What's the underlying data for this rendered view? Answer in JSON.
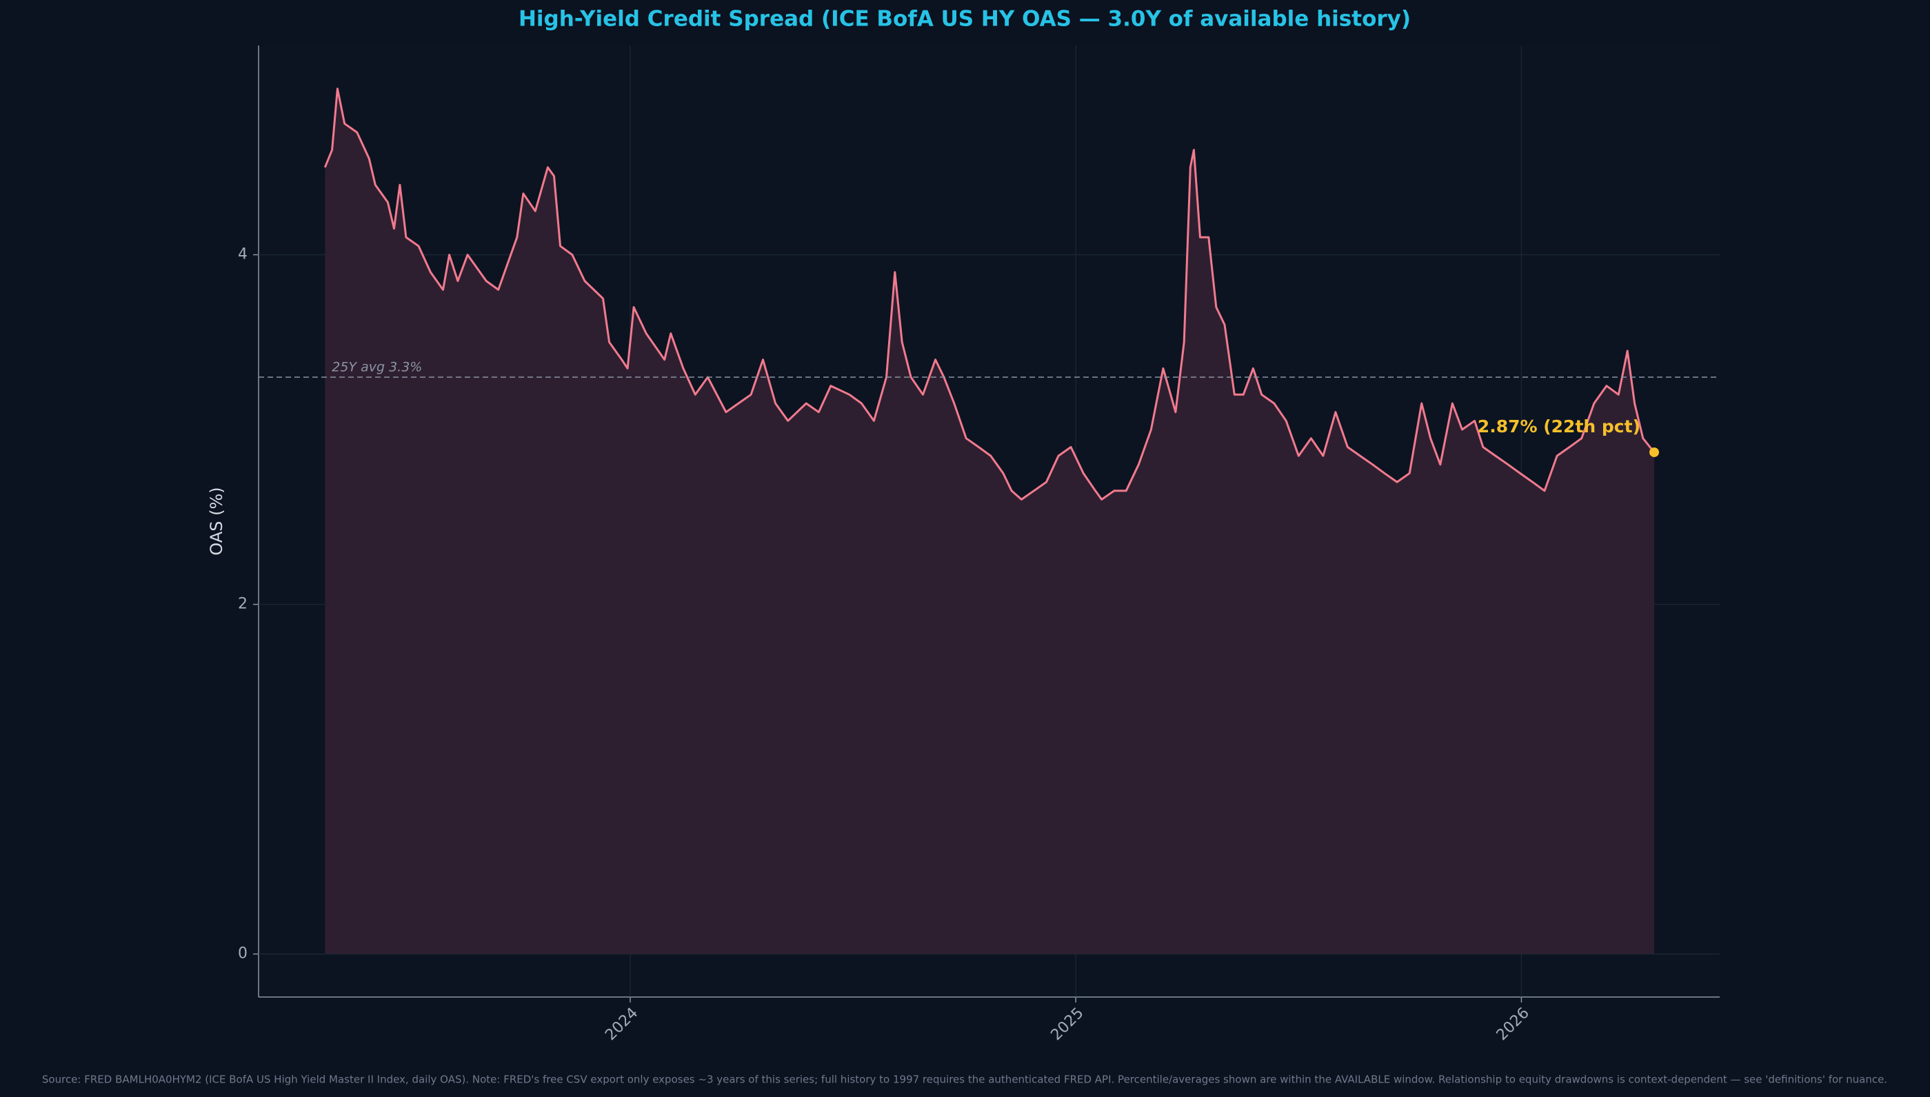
{
  "chart_data": {
    "type": "line",
    "title": "High-Yield Credit Spread  (ICE BofA US HY OAS — 3.0Y of available history)",
    "ylabel": "OAS (%)",
    "source": "Source: FRED BAMLH0A0HYM2 (ICE BofA US High Yield Master II Index, daily OAS). Note: FRED's free CSV export only exposes ~3 years of this series; full history to 1997 requires the authenticated FRED API. Percentile/averages shown are within the AVAILABLE window. Relationship to equity drawdowns is context-dependent — see 'definitions' for nuance.",
    "x": [
      2023.315,
      2023.331,
      2023.343,
      2023.359,
      2023.387,
      2023.414,
      2023.428,
      2023.456,
      2023.47,
      2023.483,
      2023.497,
      2023.525,
      2023.552,
      2023.58,
      2023.594,
      2023.613,
      2023.635,
      2023.677,
      2023.704,
      2023.746,
      2023.76,
      2023.787,
      2023.815,
      2023.829,
      2023.843,
      2023.87,
      2023.898,
      2023.939,
      2023.953,
      2023.981,
      2023.994,
      2024.008,
      2024.036,
      2024.077,
      2024.091,
      2024.119,
      2024.146,
      2024.174,
      2024.215,
      2024.243,
      2024.271,
      2024.298,
      2024.326,
      2024.354,
      2024.395,
      2024.423,
      2024.45,
      2024.492,
      2024.519,
      2024.547,
      2024.575,
      2024.594,
      2024.61,
      2024.63,
      2024.657,
      2024.685,
      2024.704,
      2024.727,
      2024.754,
      2024.782,
      2024.809,
      2024.837,
      2024.856,
      2024.878,
      2024.906,
      2024.934,
      2024.961,
      2024.989,
      2025.017,
      2025.044,
      2025.058,
      2025.086,
      2025.113,
      2025.141,
      2025.169,
      2025.196,
      2025.224,
      2025.243,
      2025.257,
      2025.265,
      2025.279,
      2025.298,
      2025.315,
      2025.334,
      2025.356,
      2025.376,
      2025.398,
      2025.417,
      2025.445,
      2025.472,
      2025.5,
      2025.528,
      2025.555,
      2025.583,
      2025.61,
      2025.638,
      2025.666,
      2025.693,
      2025.721,
      2025.749,
      2025.776,
      2025.796,
      2025.818,
      2025.845,
      2025.867,
      2025.895,
      2025.914,
      2025.942,
      2025.97,
      2025.997,
      2026.025,
      2026.052,
      2026.08,
      2026.108,
      2026.135,
      2026.163,
      2026.191,
      2026.218,
      2026.238,
      2026.254,
      2026.273,
      2026.298
    ],
    "series": [
      {
        "name": "OAS",
        "color": "#f27a8e",
        "fill": "#2e1f30",
        "values": [
          4.5,
          4.6,
          4.95,
          4.75,
          4.7,
          4.55,
          4.4,
          4.3,
          4.15,
          4.4,
          4.1,
          4.05,
          3.9,
          3.8,
          4.0,
          3.85,
          4.0,
          3.85,
          3.8,
          4.1,
          4.35,
          4.25,
          4.5,
          4.45,
          4.05,
          4.0,
          3.85,
          3.75,
          3.5,
          3.4,
          3.35,
          3.7,
          3.55,
          3.4,
          3.55,
          3.35,
          3.2,
          3.3,
          3.1,
          3.15,
          3.2,
          3.4,
          3.15,
          3.05,
          3.15,
          3.1,
          3.25,
          3.2,
          3.15,
          3.05,
          3.3,
          3.9,
          3.5,
          3.3,
          3.2,
          3.4,
          3.3,
          3.15,
          2.95,
          2.9,
          2.85,
          2.75,
          2.65,
          2.6,
          2.65,
          2.7,
          2.85,
          2.9,
          2.75,
          2.65,
          2.6,
          2.65,
          2.65,
          2.8,
          3.0,
          3.35,
          3.1,
          3.5,
          4.5,
          4.6,
          4.1,
          4.1,
          3.7,
          3.6,
          3.2,
          3.2,
          3.35,
          3.2,
          3.15,
          3.05,
          2.85,
          2.95,
          2.85,
          3.1,
          2.9,
          2.85,
          2.8,
          2.75,
          2.7,
          2.75,
          3.15,
          2.95,
          2.8,
          3.15,
          3.0,
          3.05,
          2.9,
          2.85,
          2.8,
          2.75,
          2.7,
          2.65,
          2.85,
          2.9,
          2.95,
          3.15,
          3.25,
          3.2,
          3.45,
          3.15,
          2.95,
          2.87
        ]
      }
    ],
    "avg_line": {
      "value": 3.3,
      "label": "25Y avg 3.3%",
      "color": "#8a93a3"
    },
    "annotation": {
      "text": "2.87%  (22th pct)",
      "color": "#f5c02a"
    },
    "xlim": [
      2023.166,
      2026.445
    ],
    "xticks": [
      2024,
      2025,
      2026
    ],
    "ylim": [
      -0.246,
      5.197
    ],
    "yticks": [
      0,
      2,
      4
    ],
    "grid": true
  }
}
